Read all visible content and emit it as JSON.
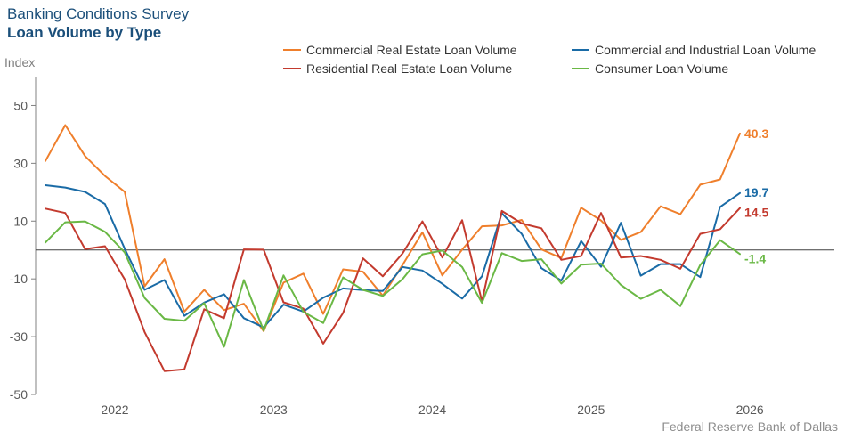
{
  "header": {
    "survey": "Banking Conditions Survey",
    "title": "Loan Volume by Type"
  },
  "source": "Federal Reserve Bank of Dallas",
  "chart_data": {
    "type": "line",
    "ylabel": "Index",
    "ylim": [
      -50,
      60
    ],
    "yticks": [
      50,
      30,
      10,
      -10,
      -30,
      -50
    ],
    "zero_line": true,
    "grid": false,
    "legend_position": "top",
    "x_start": "2021Q3",
    "x_step": "quarter-half",
    "xticks": [
      {
        "label": "2022",
        "index": 3.5
      },
      {
        "label": "2023",
        "index": 11.5
      },
      {
        "label": "2024",
        "index": 19.5
      },
      {
        "label": "2025",
        "index": 27.5
      },
      {
        "label": "2026",
        "index": 35.5
      }
    ],
    "series": [
      {
        "name": "Commercial Real Estate Loan Volume",
        "color": "#ef7f2c",
        "end_label": "40.3",
        "values": [
          30.8,
          43.2,
          32.5,
          25.6,
          20.1,
          -12.6,
          -3.2,
          -21.3,
          -13.8,
          -20.8,
          -18.6,
          -28.1,
          -11.3,
          -8.2,
          -22.1,
          -6.7,
          -7.5,
          -15.8,
          -5.2,
          6.1,
          -8.8,
          0.1,
          8.2,
          8.5,
          10.4,
          0.2,
          -2.8,
          14.6,
          10.2,
          3.5,
          6.2,
          15.1,
          12.4,
          22.6,
          24.4,
          40.3
        ]
      },
      {
        "name": "Commercial and Industrial Loan Volume",
        "color": "#1a6ba6",
        "end_label": "19.7",
        "values": [
          22.4,
          21.6,
          20.1,
          15.9,
          0.4,
          -13.8,
          -10.4,
          -22.8,
          -18.2,
          -15.3,
          -23.6,
          -26.8,
          -18.9,
          -21.3,
          -16.5,
          -13.3,
          -13.9,
          -14.2,
          -5.9,
          -7.1,
          -11.7,
          -16.8,
          -9.1,
          12.7,
          5.6,
          -6.3,
          -10.6,
          3.1,
          -5.8,
          9.4,
          -8.9,
          -4.9,
          -4.9,
          -9.4,
          14.9,
          19.7
        ]
      },
      {
        "name": "Residential Real Estate Loan Volume",
        "color": "#c33a2e",
        "end_label": "14.5",
        "values": [
          14.3,
          12.8,
          0.3,
          1.3,
          -10.2,
          -28.4,
          -41.9,
          -41.3,
          -20.5,
          -23.6,
          0.2,
          0.1,
          -18.1,
          -20.3,
          -32.4,
          -21.8,
          -2.9,
          -9.1,
          -1.2,
          9.9,
          -2.6,
          10.3,
          -17.8,
          13.5,
          9.2,
          7.5,
          -3.4,
          -2.1,
          12.8,
          -2.6,
          -2.1,
          -3.4,
          -6.5,
          5.6,
          7.2,
          14.5
        ]
      },
      {
        "name": "Consumer Loan Volume",
        "color": "#6ab845",
        "end_label": "-1.4",
        "values": [
          2.6,
          9.6,
          9.9,
          6.3,
          -0.9,
          -16.6,
          -23.8,
          -24.5,
          -18.4,
          -33.5,
          -10.4,
          -27.9,
          -8.8,
          -21.4,
          -25.3,
          -9.5,
          -13.8,
          -15.9,
          -10.1,
          -1.5,
          -0.2,
          -5.9,
          -18.3,
          -1.1,
          -3.8,
          -3.2,
          -11.6,
          -5.1,
          -4.7,
          -12.1,
          -16.9,
          -13.8,
          -19.4,
          -5.2,
          3.4,
          -1.4
        ]
      }
    ]
  }
}
